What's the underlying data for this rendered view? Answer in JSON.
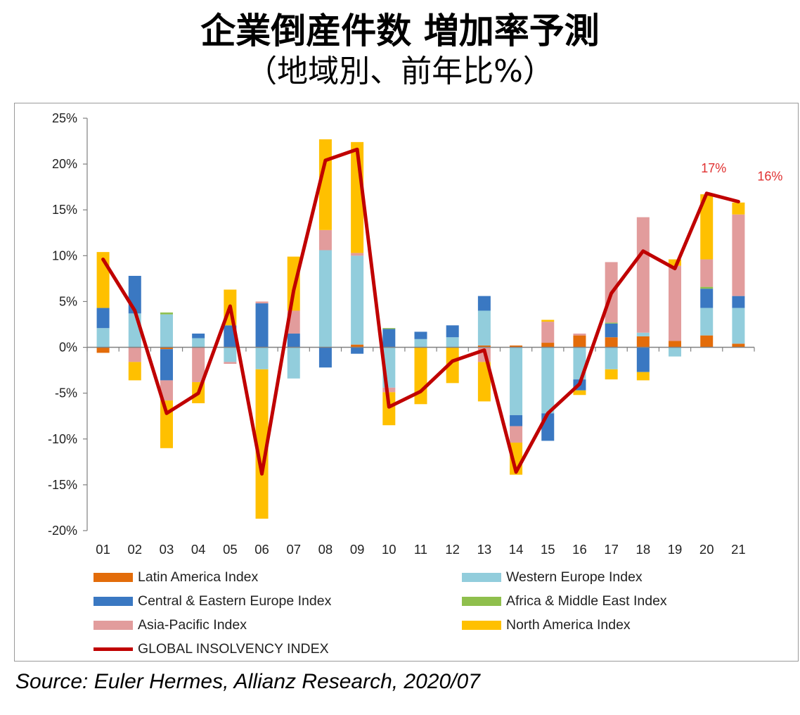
{
  "title": "企業倒産件数 増加率予測",
  "subtitle": "（地域別、前年比%）",
  "source": "Source: Euler Hermes, Allianz Research, 2020/07",
  "colors": {
    "latin_america": "#e36c0a",
    "western_europe": "#92cddc",
    "central_eastern_europe": "#3a78c2",
    "africa_middle_east": "#8fbf4d",
    "asia_pacific": "#e29c9c",
    "north_america": "#ffc000",
    "global": "#c00000"
  },
  "chart_data": {
    "type": "bar",
    "stacked": true,
    "categories": [
      "01",
      "02",
      "03",
      "04",
      "05",
      "06",
      "07",
      "08",
      "09",
      "10",
      "11",
      "12",
      "13",
      "14",
      "15",
      "16",
      "17",
      "18",
      "19",
      "20",
      "21"
    ],
    "ylim": [
      -20,
      25
    ],
    "yticks": [
      "25%",
      "20%",
      "15%",
      "10%",
      "5%",
      "0%",
      "-5%",
      "-10%",
      "-15%",
      "-20%"
    ],
    "ytick_values": [
      25,
      20,
      15,
      10,
      5,
      0,
      -5,
      -10,
      -15,
      -20
    ],
    "series": [
      {
        "key": "latin_america",
        "name": "Latin America Index",
        "values": [
          -0.6,
          0,
          -0.2,
          0,
          0,
          0,
          0,
          0,
          0.3,
          0,
          0,
          0,
          0.2,
          0.2,
          0.5,
          1.3,
          1.1,
          1.2,
          0.7,
          1.3,
          0.4
        ]
      },
      {
        "key": "western_europe",
        "name": "Western Europe Index",
        "values": [
          2.1,
          3.7,
          3.6,
          1.0,
          -1.6,
          -2.4,
          -3.4,
          10.6,
          9.7,
          -4.4,
          0.9,
          1.1,
          3.8,
          -7.4,
          -7.2,
          -3.5,
          -2.4,
          0.4,
          -1.0,
          3.0,
          3.9
        ]
      },
      {
        "key": "central_eastern_europe",
        "name": "Central & Eastern Europe Index",
        "values": [
          2.2,
          4.1,
          -3.4,
          0.5,
          2.4,
          4.8,
          1.5,
          -2.2,
          -0.7,
          2.0,
          0.8,
          1.3,
          1.6,
          -1.2,
          -3.0,
          -1.2,
          1.5,
          -2.7,
          0,
          2.1,
          1.3
        ]
      },
      {
        "key": "africa_middle_east",
        "name": "Africa & Middle East Index",
        "values": [
          0,
          0,
          0.2,
          0,
          0,
          0,
          0,
          0,
          0,
          0.1,
          0,
          0,
          0,
          0,
          0,
          0,
          0.1,
          0,
          0,
          0.2,
          0
        ]
      },
      {
        "key": "asia_pacific",
        "name": "Asia-Pacific Index",
        "values": [
          0,
          -1.6,
          -2.2,
          -3.8,
          -0.2,
          0.2,
          2.5,
          2.2,
          0.3,
          -0.5,
          0,
          0,
          -1.6,
          -1.8,
          2.3,
          0.2,
          6.6,
          12.6,
          8.2,
          3.0,
          8.9
        ]
      },
      {
        "key": "north_america",
        "name": "North America Index",
        "values": [
          6.1,
          -2.0,
          -5.2,
          -2.3,
          3.9,
          -16.3,
          5.9,
          9.9,
          12.1,
          -3.6,
          -6.2,
          -3.9,
          -4.3,
          -3.5,
          0.2,
          -0.5,
          -1.1,
          -0.9,
          0.7,
          7.1,
          1.3
        ]
      }
    ],
    "line": {
      "key": "global",
      "name": "GLOBAL INSOLVENCY INDEX",
      "values": [
        9.6,
        4.0,
        -7.2,
        -5.0,
        4.5,
        -13.8,
        6.2,
        20.4,
        21.6,
        -6.5,
        -4.8,
        -1.5,
        -0.3,
        -13.6,
        -7.2,
        -4.0,
        5.9,
        10.5,
        8.6,
        16.8,
        15.9
      ]
    },
    "annotations": [
      {
        "category": "20",
        "value": 16.8,
        "text": "17%"
      },
      {
        "category": "21",
        "value": 15.9,
        "text": "16%"
      }
    ]
  }
}
